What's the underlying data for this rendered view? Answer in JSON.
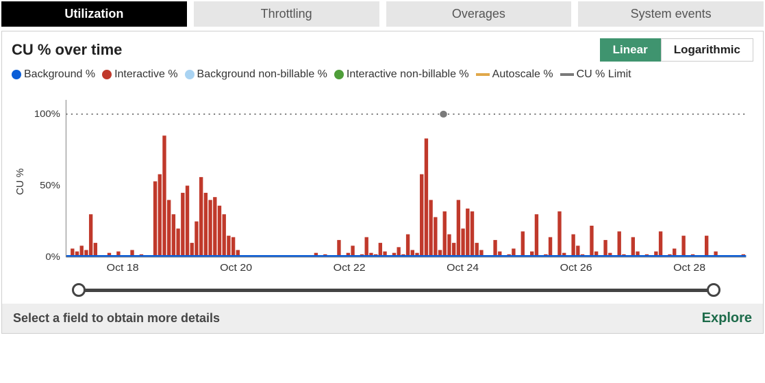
{
  "tabs": {
    "items": [
      "Utilization",
      "Throttling",
      "Overages",
      "System events"
    ],
    "active_index": 0
  },
  "panel": {
    "title": "CU % over time",
    "scale": {
      "linear": "Linear",
      "logarithmic": "Logarithmic",
      "active": "linear"
    }
  },
  "legend": [
    {
      "label": "Background %",
      "type": "circle",
      "color": "#0b5ed7"
    },
    {
      "label": "Interactive %",
      "type": "circle",
      "color": "#c0392b"
    },
    {
      "label": "Background non-billable %",
      "type": "circle",
      "color": "#a9d3f2"
    },
    {
      "label": "Interactive non-billable %",
      "type": "circle",
      "color": "#4f9e3a"
    },
    {
      "label": "Autoscale %",
      "type": "line",
      "color": "#e0a84a"
    },
    {
      "label": "CU % Limit",
      "type": "line",
      "color": "#7a7a7a"
    }
  ],
  "chart": {
    "type": "bar-timeseries",
    "y_axis_label": "CU %",
    "ylim": [
      0,
      110
    ],
    "yticks": [
      0,
      50,
      100
    ],
    "ytick_labels": [
      "0%",
      "50%",
      "100%"
    ],
    "x_categories": [
      "Oct 18",
      "Oct 20",
      "Oct 22",
      "Oct 24",
      "Oct 26",
      "Oct 28"
    ],
    "limit_line_value": 100,
    "limit_line_color": "#7a7a7a",
    "limit_marker_x_frac": 0.555,
    "interactive_color": "#c0392b",
    "background_color": "#0b5ed7",
    "plot_background": "#ffffff",
    "grid_color": "#e0e0e0",
    "interactive_values": [
      0,
      6,
      4,
      8,
      5,
      30,
      10,
      0,
      0,
      3,
      0,
      4,
      0,
      0,
      5,
      0,
      2,
      0,
      0,
      53,
      58,
      85,
      40,
      30,
      20,
      45,
      50,
      10,
      25,
      56,
      45,
      40,
      42,
      36,
      30,
      15,
      14,
      5,
      0,
      0,
      0,
      0,
      0,
      0,
      0,
      0,
      0,
      0,
      0,
      0,
      0,
      0,
      0,
      0,
      3,
      0,
      2,
      0,
      0,
      12,
      0,
      3,
      8,
      0,
      2,
      14,
      3,
      2,
      10,
      4,
      0,
      3,
      7,
      2,
      16,
      5,
      3,
      58,
      83,
      40,
      28,
      5,
      32,
      16,
      10,
      40,
      20,
      34,
      32,
      10,
      5,
      0,
      0,
      12,
      4,
      0,
      2,
      6,
      0,
      18,
      0,
      4,
      30,
      0,
      2,
      14,
      0,
      32,
      3,
      0,
      16,
      8,
      2,
      0,
      22,
      4,
      0,
      12,
      3,
      0,
      18,
      2,
      0,
      14,
      4,
      0,
      2,
      0,
      4,
      18,
      0,
      2,
      6,
      0,
      15,
      0,
      2,
      0,
      0,
      15,
      0,
      4,
      0,
      0,
      0,
      0,
      0,
      2
    ],
    "background_values_fill": 2
  },
  "footer": {
    "hint": "Select a field to obtain more details",
    "explore": "Explore"
  }
}
